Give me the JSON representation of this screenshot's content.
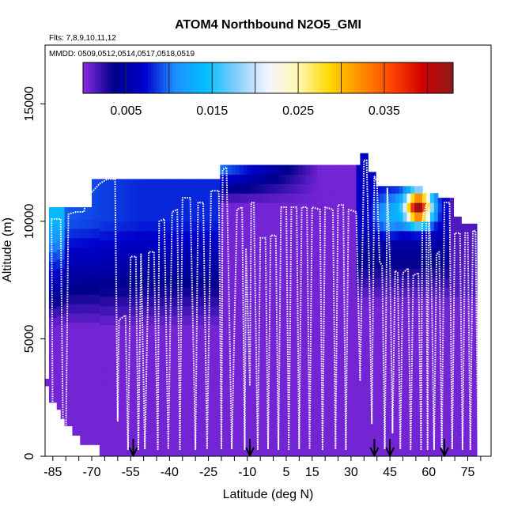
{
  "chart_data": {
    "type": "heatmap",
    "title": "ATOM4 Northbound N2O5_GMI",
    "flights_label": "Flts: 7,8,9,10,11,12",
    "dates_label": "MMDD: 0509,0512,0514,0517,0518,0519",
    "xlabel": "Latitude (deg N)",
    "ylabel": "Altitude (m)",
    "xlim": [
      -88,
      84
    ],
    "ylim": [
      0,
      17500
    ],
    "x_ticks": [
      -85,
      -70,
      -55,
      -40,
      -25,
      -10,
      5,
      15,
      30,
      45,
      60,
      75
    ],
    "x_tick_labels": [
      "-85",
      "-70",
      "-55",
      "-40",
      "-25",
      "-10",
      "5",
      "15",
      "30",
      "45",
      "60",
      "75"
    ],
    "y_ticks": [
      0,
      5000,
      10000,
      15000
    ],
    "y_tick_labels": [
      "0",
      "5000",
      "10000",
      "15000"
    ],
    "colorbar": {
      "range": [
        0,
        0.043
      ],
      "ticks": [
        0.005,
        0.015,
        0.025,
        0.035
      ],
      "tick_labels": [
        "0.005",
        "0.015",
        "0.025",
        "0.035"
      ],
      "colors": [
        "#8a2be2",
        "#00008b",
        "#0000cd",
        "#1e90ff",
        "#00bfff",
        "#87cefa",
        "#f5f5ff",
        "#fff8b0",
        "#ffd700",
        "#ff8c00",
        "#ff4500",
        "#d40000",
        "#8b1a1a"
      ]
    },
    "arrow_latitudes": [
      -54,
      -9,
      39,
      45,
      66
    ],
    "field_summary": "N2O5 concentration vs latitude and altitude; mostly < 0.003 below 7 km, 0.005-0.010 at 9-12 km south of 20S, peak ~0.035-0.04 at 10-11 km near 50-60N",
    "flight_track": [
      [
        -85,
        200
      ],
      [
        -85.5,
        10100
      ],
      [
        -82,
        10100
      ],
      [
        -81,
        300
      ],
      [
        -80,
        300
      ],
      [
        -79,
        10300
      ],
      [
        -76,
        10400
      ],
      [
        -73,
        10400
      ],
      [
        -72,
        11000
      ],
      [
        -67,
        11600
      ],
      [
        -64,
        11800
      ],
      [
        -61,
        11800
      ],
      [
        -60,
        1500
      ],
      [
        -59.5,
        5800
      ],
      [
        -57,
        6000
      ],
      [
        -56,
        300
      ],
      [
        -55,
        8500
      ],
      [
        -53,
        8500
      ],
      [
        -52,
        300
      ],
      [
        -51,
        8600
      ],
      [
        -49.5,
        300
      ],
      [
        -48,
        8700
      ],
      [
        -46,
        8700
      ],
      [
        -44.5,
        300
      ],
      [
        -44,
        10000
      ],
      [
        -42,
        10100
      ],
      [
        -40.5,
        300
      ],
      [
        -39,
        10400
      ],
      [
        -37,
        10500
      ],
      [
        -36,
        300
      ],
      [
        -35,
        11000
      ],
      [
        -32,
        11000
      ],
      [
        -30,
        300
      ],
      [
        -29,
        10800
      ],
      [
        -27,
        10800
      ],
      [
        -25.5,
        300
      ],
      [
        -24,
        11300
      ],
      [
        -21,
        11300
      ],
      [
        -20,
        300
      ],
      [
        -19.5,
        12200
      ],
      [
        -18,
        12300
      ],
      [
        -16,
        300
      ],
      [
        -14,
        10500
      ],
      [
        -12,
        10600
      ],
      [
        -11,
        300
      ],
      [
        -10.5,
        8800
      ],
      [
        -9,
        3000
      ],
      [
        -8.5,
        10800
      ],
      [
        -7.5,
        10800
      ],
      [
        -6,
        300
      ],
      [
        -5,
        9300
      ],
      [
        -3,
        9300
      ],
      [
        -2,
        300
      ],
      [
        -1,
        9400
      ],
      [
        1,
        9400
      ],
      [
        2,
        300
      ],
      [
        3,
        10600
      ],
      [
        5,
        10600
      ],
      [
        6,
        300
      ],
      [
        7,
        10600
      ],
      [
        9,
        10600
      ],
      [
        10,
        300
      ],
      [
        11,
        10600
      ],
      [
        13,
        10600
      ],
      [
        14,
        300
      ],
      [
        15,
        10600
      ],
      [
        18,
        10500
      ],
      [
        19,
        300
      ],
      [
        20,
        10600
      ],
      [
        23,
        10500
      ],
      [
        24,
        300
      ],
      [
        25,
        10700
      ],
      [
        27,
        10700
      ],
      [
        28,
        300
      ],
      [
        29,
        10500
      ],
      [
        32,
        10400
      ],
      [
        33.5,
        3200
      ],
      [
        35,
        12600
      ],
      [
        36,
        12600
      ],
      [
        37,
        8000
      ],
      [
        38,
        1400
      ],
      [
        39,
        11900
      ],
      [
        40,
        11700
      ],
      [
        41,
        8300
      ],
      [
        42,
        8100
      ],
      [
        43,
        300
      ],
      [
        44,
        11400
      ],
      [
        45,
        8300
      ],
      [
        46,
        1000
      ],
      [
        47,
        7900
      ],
      [
        48,
        7800
      ],
      [
        49,
        300
      ],
      [
        50,
        7800
      ],
      [
        52,
        8000
      ],
      [
        53,
        300
      ],
      [
        54,
        7700
      ],
      [
        56,
        7800
      ],
      [
        57,
        300
      ],
      [
        57.5,
        10000
      ],
      [
        58,
        10300
      ],
      [
        59,
        10700
      ],
      [
        59.5,
        300
      ],
      [
        60,
        10600
      ],
      [
        61,
        7700
      ],
      [
        62,
        300
      ],
      [
        63,
        8600
      ],
      [
        64,
        8700
      ],
      [
        65,
        300
      ],
      [
        66,
        10800
      ],
      [
        68,
        10800
      ],
      [
        69,
        300
      ],
      [
        70,
        9500
      ],
      [
        72,
        9500
      ],
      [
        73,
        300
      ],
      [
        74,
        9500
      ],
      [
        75,
        9500
      ],
      [
        76,
        300
      ],
      [
        77,
        9600
      ],
      [
        78,
        9600
      ],
      [
        79,
        300
      ],
      [
        80,
        9500
      ]
    ]
  }
}
